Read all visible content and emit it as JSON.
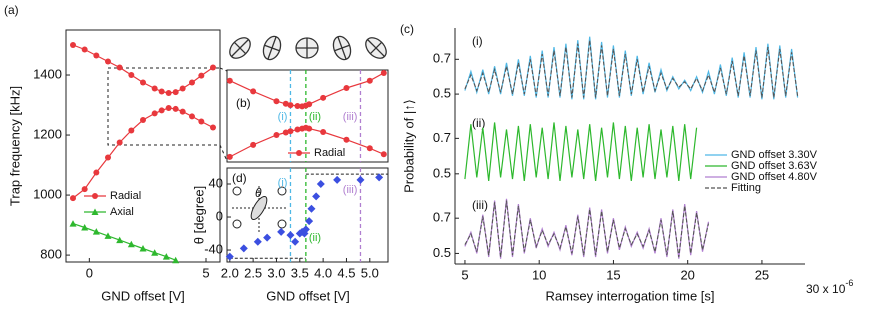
{
  "chart_data": [
    {
      "label": "(a)",
      "type": "line",
      "xlabel": "GND offset [V]",
      "ylabel": "Trap frequency [kHz]",
      "xlim": [
        -1,
        5.6
      ],
      "ylim": [
        777,
        1550
      ],
      "xticks": [
        0,
        5
      ],
      "yticks": [
        800,
        1000,
        1200,
        1400
      ],
      "legend": "lower-left",
      "series": [
        {
          "name": "Radial",
          "color": "#e8383d",
          "marker": "circle",
          "x": [
            -0.7,
            -0.2,
            0.3,
            0.8,
            1.3,
            1.8,
            2.3,
            2.8,
            3.1,
            3.4,
            3.7,
            4.0,
            4.4,
            4.8,
            5.3,
            null,
            -0.7,
            -0.2,
            0.3,
            0.8,
            1.3,
            1.8,
            2.3,
            2.8,
            3.1,
            3.4,
            3.7,
            4.0,
            4.4,
            4.8,
            5.3
          ],
          "values": [
            1500,
            1485,
            1465,
            1445,
            1425,
            1400,
            1375,
            1355,
            1345,
            1340,
            1343,
            1355,
            1375,
            1398,
            1425,
            null,
            990,
            1020,
            1075,
            1125,
            1175,
            1215,
            1250,
            1272,
            1282,
            1290,
            1287,
            1278,
            1262,
            1245,
            1225
          ]
        },
        {
          "name": "Axial",
          "color": "#2eb82e",
          "marker": "triangle",
          "x": [
            -0.7,
            -0.2,
            0.3,
            0.8,
            1.3,
            1.8,
            2.3,
            2.8,
            3.3,
            3.7
          ],
          "values": [
            905,
            892,
            878,
            864,
            850,
            836,
            822,
            808,
            795,
            783
          ]
        }
      ]
    },
    {
      "label": "(b)",
      "type": "line",
      "xlim": [
        1.94,
        5.39
      ],
      "ylim": [
        1210,
        1425
      ],
      "legend": "lower-right",
      "series": [
        {
          "name": "Radial",
          "color": "#e8383d",
          "marker": "circle",
          "x": [
            2.0,
            2.5,
            3.0,
            3.2,
            3.3,
            3.45,
            3.55,
            3.63,
            3.7,
            4.0,
            4.5,
            5.0,
            5.3,
            null,
            2.0,
            2.5,
            3.0,
            3.2,
            3.3,
            3.45,
            3.55,
            3.63,
            3.7,
            4.0,
            4.5,
            5.0,
            5.3
          ],
          "values": [
            1400,
            1375,
            1352,
            1346,
            1343,
            1341,
            1340,
            1342,
            1345,
            1360,
            1383,
            1400,
            1418,
            null,
            1222,
            1250,
            1273,
            1279,
            1282,
            1286,
            1288,
            1290,
            1288,
            1280,
            1262,
            1242,
            1228
          ]
        }
      ],
      "vlines": [
        {
          "x": 3.3,
          "label": "(i)",
          "color": "#4fb8e6"
        },
        {
          "x": 3.63,
          "label": "(ii)",
          "color": "#2db82d"
        },
        {
          "x": 4.8,
          "label": "(iii)",
          "color": "#b07fd0"
        }
      ]
    },
    {
      "label": "(d)",
      "type": "scatter",
      "xlabel": "GND offset [V]",
      "ylabel": "θ [degree]",
      "xlim": [
        1.94,
        5.39
      ],
      "ylim": [
        -54.5,
        59.4
      ],
      "xticks": [
        {
          "value": 2,
          "label": "2.0"
        },
        {
          "value": 2.5,
          "label": "2.5"
        },
        {
          "value": 3,
          "label": "3.0"
        },
        {
          "value": 3.5,
          "label": "3.5"
        },
        {
          "value": 4,
          "label": "4.0"
        },
        {
          "value": 4.5,
          "label": "4.5"
        },
        {
          "value": 5,
          "label": "5.0"
        }
      ],
      "yticks": [
        -40,
        0,
        40
      ],
      "series": [
        {
          "color": "#3b4fe0",
          "marker": "diamond",
          "x": [
            2.0,
            2.3,
            2.6,
            2.8,
            3.1,
            3.3,
            3.4,
            3.5,
            3.55,
            3.6,
            3.63,
            3.7,
            3.75,
            3.85,
            3.95,
            4.3,
            4.8,
            5.2
          ],
          "values": [
            -48,
            -38,
            -30,
            -25,
            -18,
            -22,
            -30,
            -20,
            -18,
            -20,
            -15,
            -5,
            10,
            25,
            40,
            45,
            45,
            48
          ]
        }
      ],
      "vlines": [
        {
          "x": 3.3,
          "label": "(i)",
          "color": "#4fb8e6"
        },
        {
          "x": 3.63,
          "label": "(ii)",
          "color": "#2db82d"
        },
        {
          "x": 4.8,
          "label": "(iii)",
          "color": "#b07fd0"
        }
      ],
      "hlines": [
        {
          "y": -50,
          "x": [
            2.0,
            3.63
          ]
        },
        {
          "y": 52,
          "x": [
            3.63,
            5.39
          ]
        }
      ],
      "inset_symbol": "θ"
    },
    {
      "label": "(c)",
      "type": "line",
      "xlabel": "Ramsey interrogation time [s]",
      "ylabel": "Probability of |↑⟩",
      "xlim": [
        4.33,
        27.9
      ],
      "xticks": [
        5,
        10,
        15,
        20,
        25
      ],
      "xtick_note": "30 x 10",
      "xtick_note_exp": "-6",
      "legend": "center-right",
      "panels": [
        {
          "label": "(i)",
          "ylim": [
            0.42,
            0.88
          ],
          "yticks": [
            0.5,
            0.7
          ],
          "x": [
            5,
            5.4,
            5.8,
            6.2,
            6.6,
            7,
            7.4,
            7.8,
            8.2,
            8.6,
            9,
            9.4,
            9.8,
            10.2,
            10.6,
            11,
            11.4,
            11.8,
            12.2,
            12.6,
            13,
            13.4,
            13.8,
            14.2,
            14.6,
            15,
            15.4,
            15.8,
            16.2,
            16.6,
            17,
            17.4,
            17.8,
            18.2,
            18.6,
            19,
            19.4,
            19.8,
            20.2,
            20.6,
            21,
            21.4,
            21.8,
            22.2,
            22.6,
            23,
            23.4,
            23.8,
            24.2,
            24.6,
            25,
            25.4,
            25.8,
            26.2,
            26.6,
            27,
            27.4
          ],
          "series": [
            {
              "name": "GND offset 3.30V",
              "color": "#4fb8e6",
              "values": [
                0.52,
                0.63,
                0.51,
                0.64,
                0.5,
                0.66,
                0.5,
                0.68,
                0.49,
                0.7,
                0.49,
                0.72,
                0.48,
                0.75,
                0.48,
                0.77,
                0.48,
                0.79,
                0.47,
                0.81,
                0.47,
                0.83,
                0.47,
                0.8,
                0.48,
                0.78,
                0.48,
                0.75,
                0.49,
                0.72,
                0.5,
                0.68,
                0.51,
                0.64,
                0.52,
                0.6,
                0.53,
                0.58,
                0.52,
                0.6,
                0.51,
                0.63,
                0.5,
                0.67,
                0.49,
                0.71,
                0.48,
                0.74,
                0.48,
                0.77,
                0.47,
                0.79,
                0.47,
                0.78,
                0.48,
                0.76,
                0.48
              ]
            },
            {
              "color": "#555555",
              "dashed": true,
              "values": [
                0.53,
                0.61,
                0.52,
                0.62,
                0.51,
                0.64,
                0.51,
                0.66,
                0.5,
                0.68,
                0.5,
                0.7,
                0.49,
                0.73,
                0.49,
                0.75,
                0.49,
                0.77,
                0.48,
                0.79,
                0.48,
                0.81,
                0.48,
                0.78,
                0.49,
                0.76,
                0.49,
                0.73,
                0.5,
                0.7,
                0.51,
                0.66,
                0.52,
                0.62,
                0.53,
                0.59,
                0.54,
                0.57,
                0.53,
                0.59,
                0.52,
                0.61,
                0.51,
                0.65,
                0.5,
                0.69,
                0.49,
                0.72,
                0.49,
                0.75,
                0.48,
                0.77,
                0.48,
                0.76,
                0.49,
                0.74,
                0.49
              ]
            }
          ]
        },
        {
          "label": "(ii)",
          "ylim": [
            0.42,
            0.86
          ],
          "yticks": [
            0.5,
            0.7
          ],
          "x": [
            5,
            5.4,
            5.8,
            6.2,
            6.6,
            7,
            7.4,
            7.8,
            8.2,
            8.6,
            9,
            9.4,
            9.8,
            10.2,
            10.6,
            11,
            11.4,
            11.8,
            12.2,
            12.6,
            13,
            13.4,
            13.8,
            14.2,
            14.6,
            15,
            15.4,
            15.8,
            16.2,
            16.6,
            17,
            17.4,
            17.8,
            18.2,
            18.6,
            19,
            19.4,
            19.8,
            20.2,
            20.6
          ],
          "series": [
            {
              "name": "GND offset 3.63V",
              "color": "#2db82d",
              "values": [
                0.47,
                0.78,
                0.48,
                0.76,
                0.46,
                0.79,
                0.48,
                0.75,
                0.47,
                0.77,
                0.46,
                0.78,
                0.48,
                0.76,
                0.47,
                0.79,
                0.46,
                0.77,
                0.48,
                0.75,
                0.47,
                0.78,
                0.46,
                0.76,
                0.48,
                0.79,
                0.47,
                0.77,
                0.46,
                0.76,
                0.48,
                0.78,
                0.47,
                0.75,
                0.48,
                0.77,
                0.46,
                0.78,
                0.47,
                0.76
              ]
            }
          ]
        },
        {
          "label": "(iii)",
          "ylim": [
            0.44,
            0.86
          ],
          "yticks": [
            0.5,
            0.7
          ],
          "x": [
            5,
            5.4,
            5.8,
            6.2,
            6.6,
            7,
            7.4,
            7.8,
            8.2,
            8.6,
            9,
            9.4,
            9.8,
            10.2,
            10.6,
            11,
            11.4,
            11.8,
            12.2,
            12.6,
            13,
            13.4,
            13.8,
            14.2,
            14.6,
            15,
            15.4,
            15.8,
            16.2,
            16.6,
            17,
            17.4,
            17.8,
            18.2,
            18.6,
            19,
            19.4,
            19.8,
            20.2,
            20.6,
            21,
            21.4
          ],
          "series": [
            {
              "name": "GND offset 4.80V",
              "color": "#b07fd0",
              "values": [
                0.54,
                0.62,
                0.5,
                0.72,
                0.48,
                0.8,
                0.47,
                0.81,
                0.48,
                0.78,
                0.5,
                0.7,
                0.53,
                0.64,
                0.54,
                0.62,
                0.52,
                0.66,
                0.49,
                0.72,
                0.48,
                0.76,
                0.48,
                0.75,
                0.5,
                0.7,
                0.52,
                0.65,
                0.54,
                0.62,
                0.53,
                0.64,
                0.5,
                0.7,
                0.48,
                0.75,
                0.47,
                0.78,
                0.49,
                0.74,
                0.51,
                0.68
              ]
            },
            {
              "name": "Fitting",
              "color": "#555555",
              "dashed": true,
              "values": [
                0.55,
                0.61,
                0.51,
                0.71,
                0.49,
                0.79,
                0.48,
                0.8,
                0.49,
                0.77,
                0.51,
                0.69,
                0.54,
                0.63,
                0.55,
                0.61,
                0.53,
                0.65,
                0.5,
                0.71,
                0.49,
                0.75,
                0.49,
                0.74,
                0.51,
                0.69,
                0.53,
                0.64,
                0.55,
                0.61,
                0.54,
                0.63,
                0.51,
                0.69,
                0.49,
                0.74,
                0.48,
                0.77,
                0.5,
                0.73,
                0.52,
                0.67
              ]
            }
          ]
        }
      ]
    }
  ]
}
